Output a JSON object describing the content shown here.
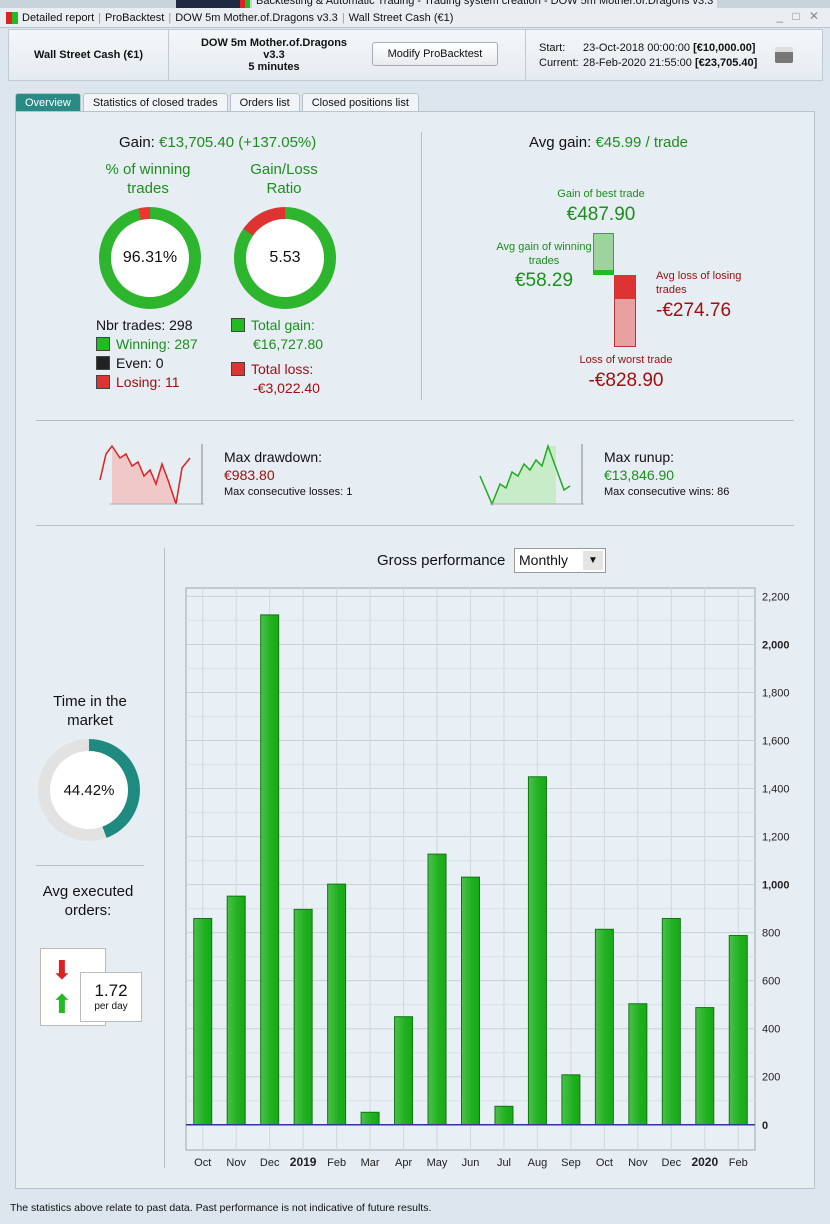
{
  "window": {
    "title_parts": [
      "Detailed report",
      "ProBacktest",
      "DOW 5m Mother.of.Dragons v3.3",
      "Wall Street Cash (€1)"
    ],
    "behind_title": "Backtesting & Automatic Trading - Trading system creation - DOW 5m Mother.of.Dragons v3.3"
  },
  "header": {
    "instrument": "Wall Street Cash (€1)",
    "system": "DOW 5m Mother.of.Dragons v3.3",
    "timeframe": "5 minutes",
    "modify_label": "Modify ProBacktest",
    "start_label": "Start:",
    "start_date": "23-Oct-2018 00:00:00",
    "start_value": "[€10,000.00]",
    "current_label": "Current:",
    "current_date": "28-Feb-2020 21:55:00",
    "current_value": "[€23,705.40]"
  },
  "tabs": [
    {
      "label": "Overview"
    },
    {
      "label": "Statistics of closed trades"
    },
    {
      "label": "Orders list"
    },
    {
      "label": "Closed positions list"
    }
  ],
  "gain": {
    "label": "Gain:",
    "value": "€13,705.40 (+137.05%)",
    "win_title": "% of winning trades",
    "win_pct": "96.31%",
    "win_fraction": 0.9631,
    "ratio_title": "Gain/Loss Ratio",
    "ratio": "5.53",
    "nbr_trades": "Nbr trades: 298",
    "winning": "Winning: 287",
    "even": "Even: 0",
    "losing": "Losing: 11",
    "total_gain_label": "Total gain:",
    "total_gain": "€16,727.80",
    "total_loss_label": "Total loss:",
    "total_loss": "-€3,022.40"
  },
  "avg": {
    "label": "Avg gain:",
    "value": "€45.99 / trade",
    "best_label": "Gain of best trade",
    "best": "€487.90",
    "avg_win_label": "Avg gain of winning trades",
    "avg_win": "€58.29",
    "avg_loss_label": "Avg loss of losing trades",
    "avg_loss": "-€274.76",
    "worst_label": "Loss of worst trade",
    "worst": "-€828.90"
  },
  "drawdown": {
    "label": "Max drawdown:",
    "value": "€983.80",
    "sub": "Max consecutive losses: 1"
  },
  "runup": {
    "label": "Max runup:",
    "value": "€13,846.90",
    "sub": "Max consecutive wins: 86"
  },
  "market": {
    "title": "Time in the market",
    "value": "44.42%",
    "fraction": 0.4442
  },
  "orders": {
    "title": "Avg executed orders:",
    "value": "1.72",
    "unit": "per day"
  },
  "perf": {
    "title": "Gross performance",
    "select": "Monthly"
  },
  "chart_data": {
    "type": "bar",
    "categories": [
      "Oct",
      "Nov",
      "Dec",
      "2019",
      "Feb",
      "Mar",
      "Apr",
      "May",
      "Jun",
      "Jul",
      "Aug",
      "Sep",
      "Oct",
      "Nov",
      "Dec",
      "2020",
      "Feb"
    ],
    "values": [
      859,
      952,
      2123,
      897,
      1002,
      52,
      450,
      1127,
      1031,
      77,
      1449,
      208,
      814,
      504,
      859,
      488,
      788
    ],
    "yticks": [
      "0",
      "200",
      "400",
      "600",
      "800",
      "1,000",
      "1,200",
      "1,400",
      "1,600",
      "1,800",
      "2,000",
      "2,200"
    ],
    "ylim": [
      -105,
      2235
    ],
    "grid": true,
    "bar_color": "#22b422"
  },
  "footer": "The statistics above relate to past data. Past performance is not indicative of future results."
}
